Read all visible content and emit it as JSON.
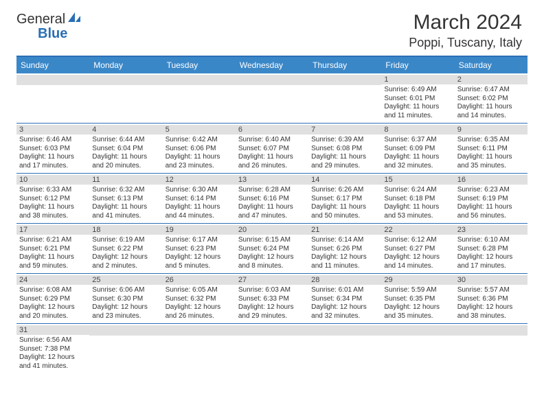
{
  "logo": {
    "text1": "General",
    "text2": "Blue"
  },
  "title": "March 2024",
  "location": "Poppi, Tuscany, Italy",
  "colors": {
    "brand_blue": "#3a87c8",
    "rule_blue": "#2a6fb5",
    "daynum_bg": "#e0e0e0",
    "text": "#333333",
    "white": "#ffffff"
  },
  "daysOfWeek": [
    "Sunday",
    "Monday",
    "Tuesday",
    "Wednesday",
    "Thursday",
    "Friday",
    "Saturday"
  ],
  "weeks": [
    [
      {
        "n": "",
        "sr": "",
        "ss": "",
        "dl": ""
      },
      {
        "n": "",
        "sr": "",
        "ss": "",
        "dl": ""
      },
      {
        "n": "",
        "sr": "",
        "ss": "",
        "dl": ""
      },
      {
        "n": "",
        "sr": "",
        "ss": "",
        "dl": ""
      },
      {
        "n": "",
        "sr": "",
        "ss": "",
        "dl": ""
      },
      {
        "n": "1",
        "sr": "Sunrise: 6:49 AM",
        "ss": "Sunset: 6:01 PM",
        "dl": "Daylight: 11 hours and 11 minutes."
      },
      {
        "n": "2",
        "sr": "Sunrise: 6:47 AM",
        "ss": "Sunset: 6:02 PM",
        "dl": "Daylight: 11 hours and 14 minutes."
      }
    ],
    [
      {
        "n": "3",
        "sr": "Sunrise: 6:46 AM",
        "ss": "Sunset: 6:03 PM",
        "dl": "Daylight: 11 hours and 17 minutes."
      },
      {
        "n": "4",
        "sr": "Sunrise: 6:44 AM",
        "ss": "Sunset: 6:04 PM",
        "dl": "Daylight: 11 hours and 20 minutes."
      },
      {
        "n": "5",
        "sr": "Sunrise: 6:42 AM",
        "ss": "Sunset: 6:06 PM",
        "dl": "Daylight: 11 hours and 23 minutes."
      },
      {
        "n": "6",
        "sr": "Sunrise: 6:40 AM",
        "ss": "Sunset: 6:07 PM",
        "dl": "Daylight: 11 hours and 26 minutes."
      },
      {
        "n": "7",
        "sr": "Sunrise: 6:39 AM",
        "ss": "Sunset: 6:08 PM",
        "dl": "Daylight: 11 hours and 29 minutes."
      },
      {
        "n": "8",
        "sr": "Sunrise: 6:37 AM",
        "ss": "Sunset: 6:09 PM",
        "dl": "Daylight: 11 hours and 32 minutes."
      },
      {
        "n": "9",
        "sr": "Sunrise: 6:35 AM",
        "ss": "Sunset: 6:11 PM",
        "dl": "Daylight: 11 hours and 35 minutes."
      }
    ],
    [
      {
        "n": "10",
        "sr": "Sunrise: 6:33 AM",
        "ss": "Sunset: 6:12 PM",
        "dl": "Daylight: 11 hours and 38 minutes."
      },
      {
        "n": "11",
        "sr": "Sunrise: 6:32 AM",
        "ss": "Sunset: 6:13 PM",
        "dl": "Daylight: 11 hours and 41 minutes."
      },
      {
        "n": "12",
        "sr": "Sunrise: 6:30 AM",
        "ss": "Sunset: 6:14 PM",
        "dl": "Daylight: 11 hours and 44 minutes."
      },
      {
        "n": "13",
        "sr": "Sunrise: 6:28 AM",
        "ss": "Sunset: 6:16 PM",
        "dl": "Daylight: 11 hours and 47 minutes."
      },
      {
        "n": "14",
        "sr": "Sunrise: 6:26 AM",
        "ss": "Sunset: 6:17 PM",
        "dl": "Daylight: 11 hours and 50 minutes."
      },
      {
        "n": "15",
        "sr": "Sunrise: 6:24 AM",
        "ss": "Sunset: 6:18 PM",
        "dl": "Daylight: 11 hours and 53 minutes."
      },
      {
        "n": "16",
        "sr": "Sunrise: 6:23 AM",
        "ss": "Sunset: 6:19 PM",
        "dl": "Daylight: 11 hours and 56 minutes."
      }
    ],
    [
      {
        "n": "17",
        "sr": "Sunrise: 6:21 AM",
        "ss": "Sunset: 6:21 PM",
        "dl": "Daylight: 11 hours and 59 minutes."
      },
      {
        "n": "18",
        "sr": "Sunrise: 6:19 AM",
        "ss": "Sunset: 6:22 PM",
        "dl": "Daylight: 12 hours and 2 minutes."
      },
      {
        "n": "19",
        "sr": "Sunrise: 6:17 AM",
        "ss": "Sunset: 6:23 PM",
        "dl": "Daylight: 12 hours and 5 minutes."
      },
      {
        "n": "20",
        "sr": "Sunrise: 6:15 AM",
        "ss": "Sunset: 6:24 PM",
        "dl": "Daylight: 12 hours and 8 minutes."
      },
      {
        "n": "21",
        "sr": "Sunrise: 6:14 AM",
        "ss": "Sunset: 6:26 PM",
        "dl": "Daylight: 12 hours and 11 minutes."
      },
      {
        "n": "22",
        "sr": "Sunrise: 6:12 AM",
        "ss": "Sunset: 6:27 PM",
        "dl": "Daylight: 12 hours and 14 minutes."
      },
      {
        "n": "23",
        "sr": "Sunrise: 6:10 AM",
        "ss": "Sunset: 6:28 PM",
        "dl": "Daylight: 12 hours and 17 minutes."
      }
    ],
    [
      {
        "n": "24",
        "sr": "Sunrise: 6:08 AM",
        "ss": "Sunset: 6:29 PM",
        "dl": "Daylight: 12 hours and 20 minutes."
      },
      {
        "n": "25",
        "sr": "Sunrise: 6:06 AM",
        "ss": "Sunset: 6:30 PM",
        "dl": "Daylight: 12 hours and 23 minutes."
      },
      {
        "n": "26",
        "sr": "Sunrise: 6:05 AM",
        "ss": "Sunset: 6:32 PM",
        "dl": "Daylight: 12 hours and 26 minutes."
      },
      {
        "n": "27",
        "sr": "Sunrise: 6:03 AM",
        "ss": "Sunset: 6:33 PM",
        "dl": "Daylight: 12 hours and 29 minutes."
      },
      {
        "n": "28",
        "sr": "Sunrise: 6:01 AM",
        "ss": "Sunset: 6:34 PM",
        "dl": "Daylight: 12 hours and 32 minutes."
      },
      {
        "n": "29",
        "sr": "Sunrise: 5:59 AM",
        "ss": "Sunset: 6:35 PM",
        "dl": "Daylight: 12 hours and 35 minutes."
      },
      {
        "n": "30",
        "sr": "Sunrise: 5:57 AM",
        "ss": "Sunset: 6:36 PM",
        "dl": "Daylight: 12 hours and 38 minutes."
      }
    ],
    [
      {
        "n": "31",
        "sr": "Sunrise: 6:56 AM",
        "ss": "Sunset: 7:38 PM",
        "dl": "Daylight: 12 hours and 41 minutes."
      },
      {
        "n": "",
        "sr": "",
        "ss": "",
        "dl": ""
      },
      {
        "n": "",
        "sr": "",
        "ss": "",
        "dl": ""
      },
      {
        "n": "",
        "sr": "",
        "ss": "",
        "dl": ""
      },
      {
        "n": "",
        "sr": "",
        "ss": "",
        "dl": ""
      },
      {
        "n": "",
        "sr": "",
        "ss": "",
        "dl": ""
      },
      {
        "n": "",
        "sr": "",
        "ss": "",
        "dl": ""
      }
    ]
  ]
}
